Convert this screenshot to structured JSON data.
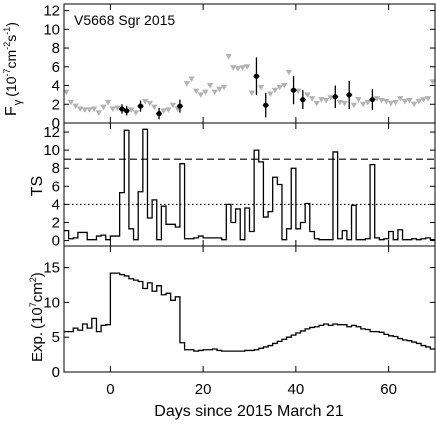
{
  "chart_data": [
    {
      "panel": "flux",
      "type": "scatter",
      "annotation": "V5668 Sgr 2015",
      "ylabel_main": "F",
      "ylabel_sub": "γ",
      "ylabel_unit_a": "(10",
      "ylabel_unit_b": "-7",
      "ylabel_unit_c": "cm",
      "ylabel_unit_d": "-2",
      "ylabel_unit_e": "s",
      "ylabel_unit_f": "-1",
      "ylabel_unit_g": ")",
      "xlim": [
        -10,
        70
      ],
      "ylim": [
        0,
        12.7
      ],
      "yticks": [
        "0",
        "2",
        "4",
        "6",
        "8",
        "10",
        "12"
      ],
      "detections": [
        {
          "x": 2.5,
          "y": 1.5,
          "err": 0.5
        },
        {
          "x": 3.5,
          "y": 1.3,
          "err": 0.5
        },
        {
          "x": 6.5,
          "y": 1.8,
          "err": 0.6
        },
        {
          "x": 10.5,
          "y": 1.0,
          "err": 0.6
        },
        {
          "x": 15.0,
          "y": 1.8,
          "err": 0.7
        },
        {
          "x": 31.5,
          "y": 5.0,
          "err": 2.0
        },
        {
          "x": 33.5,
          "y": 1.9,
          "err": 1.3
        },
        {
          "x": 39.5,
          "y": 3.5,
          "err": 1.5
        },
        {
          "x": 41.5,
          "y": 2.5,
          "err": 1.0
        },
        {
          "x": 48.5,
          "y": 2.8,
          "err": 1.2
        },
        {
          "x": 51.5,
          "y": 3.0,
          "err": 1.5
        },
        {
          "x": 56.5,
          "y": 2.5,
          "err": 1.1
        }
      ],
      "upper_limits": [
        {
          "x": -9.5,
          "y": 3.3
        },
        {
          "x": -8.5,
          "y": 2.2
        },
        {
          "x": -7.5,
          "y": 1.8
        },
        {
          "x": -6.5,
          "y": 1.5
        },
        {
          "x": -5.5,
          "y": 1.4
        },
        {
          "x": -4.5,
          "y": 1.4
        },
        {
          "x": -3.5,
          "y": 1.5
        },
        {
          "x": -2.5,
          "y": 1.1
        },
        {
          "x": -1.5,
          "y": 1.7
        },
        {
          "x": -0.5,
          "y": 2.2
        },
        {
          "x": 0.5,
          "y": 1.5
        },
        {
          "x": 1.5,
          "y": 1.6
        },
        {
          "x": 4.5,
          "y": 1.4
        },
        {
          "x": 5.5,
          "y": 1.1
        },
        {
          "x": 7.5,
          "y": 2.3
        },
        {
          "x": 8.5,
          "y": 2.1
        },
        {
          "x": 9.5,
          "y": 1.7
        },
        {
          "x": 11.5,
          "y": 1.3
        },
        {
          "x": 12.5,
          "y": 1.4
        },
        {
          "x": 13.5,
          "y": 1.9
        },
        {
          "x": 14.5,
          "y": 1.5
        },
        {
          "x": 16.5,
          "y": 4.2
        },
        {
          "x": 17.5,
          "y": 4.7
        },
        {
          "x": 18.5,
          "y": 3.4
        },
        {
          "x": 19.5,
          "y": 3.0
        },
        {
          "x": 20.5,
          "y": 3.3
        },
        {
          "x": 21.5,
          "y": 4.0
        },
        {
          "x": 22.5,
          "y": 3.3
        },
        {
          "x": 23.5,
          "y": 3.6
        },
        {
          "x": 24.5,
          "y": 3.8
        },
        {
          "x": 25.5,
          "y": 7.1
        },
        {
          "x": 26.5,
          "y": 5.9
        },
        {
          "x": 27.5,
          "y": 5.8
        },
        {
          "x": 28.5,
          "y": 5.9
        },
        {
          "x": 29.5,
          "y": 6.0
        },
        {
          "x": 30.5,
          "y": 3.2
        },
        {
          "x": 32.5,
          "y": 3.8
        },
        {
          "x": 34.5,
          "y": 3.1
        },
        {
          "x": 35.5,
          "y": 3.5
        },
        {
          "x": 36.5,
          "y": 3.8
        },
        {
          "x": 37.5,
          "y": 4.0
        },
        {
          "x": 38.5,
          "y": 5.4
        },
        {
          "x": 40.5,
          "y": 3.4
        },
        {
          "x": 42.5,
          "y": 3.0
        },
        {
          "x": 43.5,
          "y": 2.6
        },
        {
          "x": 44.5,
          "y": 2.1
        },
        {
          "x": 45.5,
          "y": 2.5
        },
        {
          "x": 46.5,
          "y": 2.4
        },
        {
          "x": 47.5,
          "y": 2.7
        },
        {
          "x": 49.5,
          "y": 2.2
        },
        {
          "x": 50.5,
          "y": 2.1
        },
        {
          "x": 52.5,
          "y": 1.9
        },
        {
          "x": 53.5,
          "y": 2.5
        },
        {
          "x": 54.5,
          "y": 2.0
        },
        {
          "x": 55.5,
          "y": 2.2
        },
        {
          "x": 57.5,
          "y": 2.6
        },
        {
          "x": 58.5,
          "y": 2.4
        },
        {
          "x": 59.5,
          "y": 2.3
        },
        {
          "x": 60.5,
          "y": 2.1
        },
        {
          "x": 61.5,
          "y": 2.2
        },
        {
          "x": 62.5,
          "y": 2.6
        },
        {
          "x": 63.5,
          "y": 2.3
        },
        {
          "x": 64.5,
          "y": 2.4
        },
        {
          "x": 65.5,
          "y": 2.0
        },
        {
          "x": 66.5,
          "y": 2.3
        },
        {
          "x": 67.5,
          "y": 2.5
        },
        {
          "x": 68.5,
          "y": 2.6
        },
        {
          "x": 69.5,
          "y": 4.4
        }
      ],
      "colors": {
        "detection": "#000000",
        "upper_limit": "#b3b3b3"
      }
    },
    {
      "panel": "ts",
      "type": "line",
      "ylabel": "TS",
      "xlim": [
        -10,
        70
      ],
      "ylim": [
        -0.6,
        13.0
      ],
      "yticks": [
        "0",
        "2",
        "4",
        "6",
        "8",
        "10",
        "12"
      ],
      "step_start": -10,
      "step_width": 1,
      "values": [
        1.1,
        0.2,
        0.3,
        0.9,
        0.9,
        0.1,
        0.1,
        0.5,
        0.6,
        0.1,
        0.5,
        0.5,
        5.3,
        12.2,
        1.3,
        0.1,
        5.4,
        12.3,
        2.5,
        4.5,
        0.1,
        3.8,
        1.8,
        1.8,
        1.5,
        8.5,
        0.2,
        0.2,
        0.3,
        0.5,
        0.3,
        0.3,
        0.3,
        0.3,
        0.1,
        4.0,
        2.0,
        3.5,
        0.1,
        3.6,
        1.0,
        10.0,
        8.7,
        2.6,
        3.2,
        7.0,
        6.2,
        0.1,
        1.3,
        8.0,
        1.3,
        2.0,
        4.1,
        1.0,
        0.2,
        0.1,
        0.1,
        0.1,
        9.8,
        0.2,
        1.1,
        0.1,
        3.9,
        0.1,
        0.1,
        0.2,
        8.4,
        0.3,
        0.1,
        0.2,
        1.0,
        0.1,
        1.2,
        0.1,
        0.1,
        0.2,
        0.1,
        0.2,
        0.3,
        0.1
      ],
      "reference_lines": [
        {
          "y": 9,
          "style": "dashed"
        },
        {
          "y": 4,
          "style": "dotted"
        }
      ]
    },
    {
      "panel": "exposure",
      "type": "line",
      "ylabel_a": "Exp.",
      "ylabel_b": "(10",
      "ylabel_c": "7",
      "ylabel_d": "cm",
      "ylabel_e": "2",
      "ylabel_f": ")",
      "xlabel": "Days since 2015 March 21",
      "xlim": [
        -10,
        70
      ],
      "ylim": [
        0,
        18.1
      ],
      "yticks": [
        "0",
        "5",
        "10",
        "15"
      ],
      "xticks": [
        0,
        20,
        40,
        60
      ],
      "xtick_labels": [
        "0",
        "20",
        "40",
        "60"
      ],
      "step_start": -10,
      "step_width": 1,
      "values": [
        5.8,
        5.8,
        6.3,
        6.0,
        6.9,
        6.3,
        7.7,
        5.8,
        6.7,
        6.8,
        14.2,
        14.2,
        14.0,
        13.8,
        13.4,
        13.2,
        13.0,
        12.0,
        12.8,
        11.6,
        12.4,
        11.1,
        11.3,
        10.3,
        10.8,
        4.2,
        3.2,
        3.2,
        3.0,
        3.1,
        3.2,
        3.2,
        3.3,
        3.1,
        3.0,
        3.0,
        3.0,
        3.0,
        3.0,
        3.1,
        3.1,
        3.2,
        3.4,
        3.6,
        3.8,
        4.1,
        4.4,
        4.7,
        5.0,
        5.3,
        5.6,
        5.9,
        6.2,
        6.4,
        6.5,
        6.7,
        6.9,
        6.7,
        6.9,
        6.8,
        6.8,
        6.5,
        6.7,
        6.5,
        6.2,
        6.1,
        5.8,
        5.8,
        5.7,
        5.4,
        5.2,
        5.1,
        4.8,
        4.6,
        4.5,
        4.3,
        4.1,
        3.8,
        3.6,
        3.3
      ]
    }
  ]
}
